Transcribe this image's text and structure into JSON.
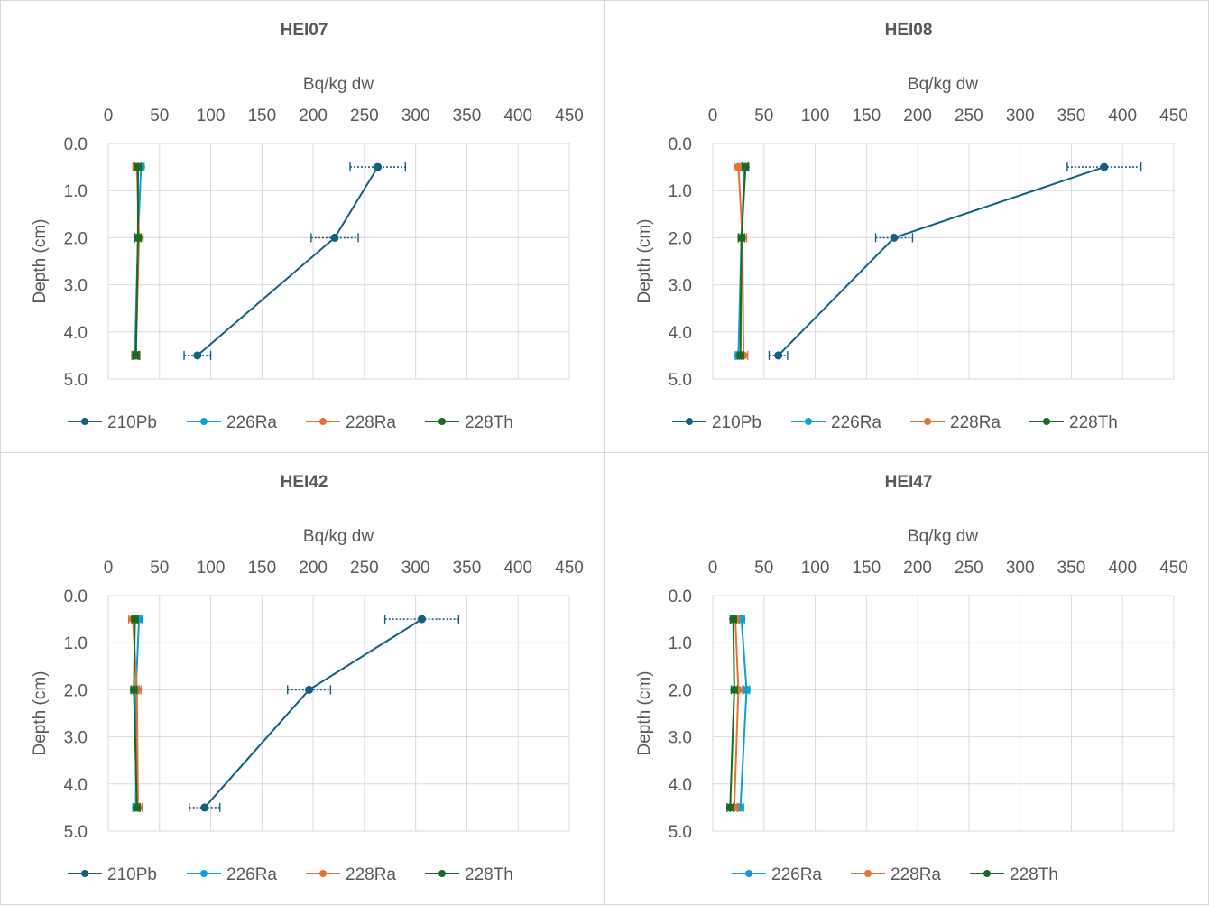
{
  "colors": {
    "210Pb": "#156082",
    "226Ra": "#0f9ed5",
    "228Ra": "#e97132",
    "228Th": "#196b24"
  },
  "chart_data": [
    {
      "type": "line",
      "title": "HEI07",
      "xlabel": "Bq/kg dw",
      "ylabel": "Depth (cm)",
      "xlim": [
        0,
        450
      ],
      "ylim": [
        0,
        5
      ],
      "x_ticks": [
        "0",
        "50",
        "100",
        "150",
        "200",
        "250",
        "300",
        "350",
        "400",
        "450"
      ],
      "y_ticks": [
        "0.0",
        "1.0",
        "2.0",
        "3.0",
        "4.0",
        "5.0"
      ],
      "legend": [
        "210Pb",
        "226Ra",
        "228Ra",
        "228Th"
      ],
      "series": [
        {
          "name": "210Pb",
          "depth": [
            0.5,
            2.0,
            4.5
          ],
          "values": [
            263,
            221,
            87
          ],
          "errors": [
            27,
            23,
            13
          ]
        },
        {
          "name": "226Ra",
          "depth": [
            0.5,
            2.0,
            4.5
          ],
          "values": [
            32,
            29,
            26
          ],
          "errors": [
            3,
            3,
            3
          ]
        },
        {
          "name": "228Ra",
          "depth": [
            0.5,
            2.0,
            4.5
          ],
          "values": [
            28,
            30,
            27
          ],
          "errors": [
            4,
            4,
            4
          ]
        },
        {
          "name": "228Th",
          "depth": [
            0.5,
            2.0,
            4.5
          ],
          "values": [
            29,
            29,
            27
          ],
          "errors": [
            3,
            3,
            3
          ]
        }
      ]
    },
    {
      "type": "line",
      "title": "HEI08",
      "xlabel": "Bq/kg dw",
      "ylabel": "Depth (cm)",
      "xlim": [
        0,
        450
      ],
      "ylim": [
        0,
        5
      ],
      "x_ticks": [
        "0",
        "50",
        "100",
        "150",
        "200",
        "250",
        "300",
        "350",
        "400",
        "450"
      ],
      "y_ticks": [
        "0.0",
        "1.0",
        "2.0",
        "3.0",
        "4.0",
        "5.0"
      ],
      "legend": [
        "210Pb",
        "226Ra",
        "228Ra",
        "228Th"
      ],
      "series": [
        {
          "name": "210Pb",
          "depth": [
            0.5,
            2.0,
            4.5
          ],
          "values": [
            382,
            177,
            64
          ],
          "errors": [
            36,
            18,
            9
          ]
        },
        {
          "name": "226Ra",
          "depth": [
            0.5,
            2.0,
            4.5
          ],
          "values": [
            31,
            28,
            25
          ],
          "errors": [
            3,
            3,
            3
          ]
        },
        {
          "name": "228Ra",
          "depth": [
            0.5,
            2.0,
            4.5
          ],
          "values": [
            25,
            29,
            30
          ],
          "errors": [
            4,
            4,
            4
          ]
        },
        {
          "name": "228Th",
          "depth": [
            0.5,
            2.0,
            4.5
          ],
          "values": [
            32,
            28,
            27
          ],
          "errors": [
            3,
            3,
            3
          ]
        }
      ]
    },
    {
      "type": "line",
      "title": "HEI42",
      "xlabel": "Bq/kg dw",
      "ylabel": "Depth (cm)",
      "xlim": [
        0,
        450
      ],
      "ylim": [
        0,
        5
      ],
      "x_ticks": [
        "0",
        "50",
        "100",
        "150",
        "200",
        "250",
        "300",
        "350",
        "400",
        "450"
      ],
      "y_ticks": [
        "0.0",
        "1.0",
        "2.0",
        "3.0",
        "4.0",
        "5.0"
      ],
      "legend": [
        "210Pb",
        "226Ra",
        "228Ra",
        "228Th"
      ],
      "series": [
        {
          "name": "210Pb",
          "depth": [
            0.5,
            2.0,
            4.5
          ],
          "values": [
            306,
            196,
            94
          ],
          "errors": [
            36,
            21,
            15
          ]
        },
        {
          "name": "226Ra",
          "depth": [
            0.5,
            2.0,
            4.5
          ],
          "values": [
            30,
            27,
            27
          ],
          "errors": [
            3,
            3,
            3
          ]
        },
        {
          "name": "228Ra",
          "depth": [
            0.5,
            2.0,
            4.5
          ],
          "values": [
            24,
            28,
            29
          ],
          "errors": [
            4,
            4,
            4
          ]
        },
        {
          "name": "228Th",
          "depth": [
            0.5,
            2.0,
            4.5
          ],
          "values": [
            26,
            25,
            28
          ],
          "errors": [
            3,
            3,
            3
          ]
        }
      ]
    },
    {
      "type": "line",
      "title": "HEI47",
      "xlabel": "Bq/kg dw",
      "ylabel": "Depth (cm)",
      "xlim": [
        0,
        450
      ],
      "ylim": [
        0,
        5
      ],
      "x_ticks": [
        "0",
        "50",
        "100",
        "150",
        "200",
        "250",
        "300",
        "350",
        "400",
        "450"
      ],
      "y_ticks": [
        "0.0",
        "1.0",
        "2.0",
        "3.0",
        "4.0",
        "5.0"
      ],
      "legend": [
        "226Ra",
        "228Ra",
        "228Th"
      ],
      "series": [
        {
          "name": "226Ra",
          "depth": [
            0.5,
            2.0,
            4.5
          ],
          "values": [
            28,
            33,
            27
          ],
          "errors": [
            3,
            3,
            3
          ]
        },
        {
          "name": "228Ra",
          "depth": [
            0.5,
            2.0,
            4.5
          ],
          "values": [
            22,
            25,
            21
          ],
          "errors": [
            4,
            4,
            4
          ]
        },
        {
          "name": "228Th",
          "depth": [
            0.5,
            2.0,
            4.5
          ],
          "values": [
            20,
            21,
            17
          ],
          "errors": [
            3,
            3,
            3
          ]
        }
      ]
    }
  ]
}
